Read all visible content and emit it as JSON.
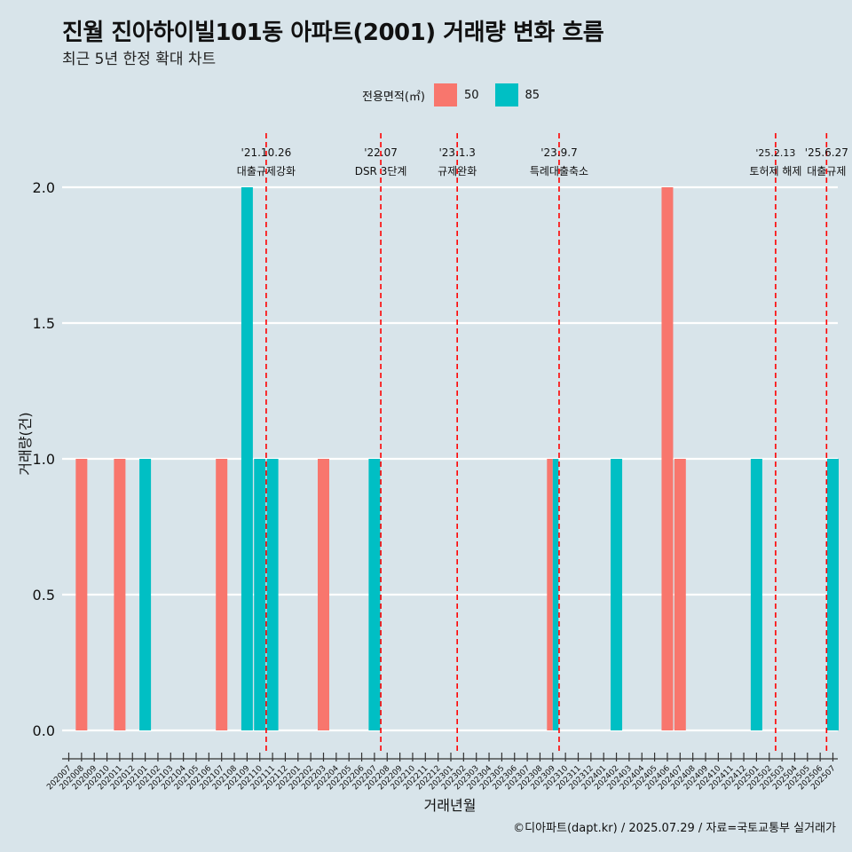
{
  "header": {
    "title": "진월 진아하이빌101동 아파트(2001) 거래량 변화 흐름",
    "subtitle": "최근 5년 한정 확대 차트"
  },
  "legend": {
    "title": "전용면적(㎡)",
    "items": [
      {
        "label": "50",
        "color": "#f8766d"
      },
      {
        "label": "85",
        "color": "#00bfc4"
      }
    ]
  },
  "footer": {
    "credit": "©디아파트(dapt.kr) / 2025.07.29 / 자료=국토교통부 실거래가"
  },
  "chart_data": {
    "type": "bar",
    "xlabel": "거래년월",
    "ylabel": "거래량(건)",
    "ylim": [
      0,
      2
    ],
    "yticks": [
      "0.0",
      "0.5",
      "1.0",
      "1.5",
      "2.0"
    ],
    "categories": [
      "202007",
      "202008",
      "202009",
      "202010",
      "202011",
      "202012",
      "202101",
      "202102",
      "202103",
      "202104",
      "202105",
      "202106",
      "202107",
      "202108",
      "202109",
      "202110",
      "202111",
      "202112",
      "202201",
      "202202",
      "202203",
      "202204",
      "202205",
      "202206",
      "202207",
      "202208",
      "202209",
      "202210",
      "202211",
      "202212",
      "202301",
      "202302",
      "202303",
      "202304",
      "202305",
      "202306",
      "202307",
      "202308",
      "202309",
      "202310",
      "202311",
      "202312",
      "202401",
      "202402",
      "202403",
      "202404",
      "202405",
      "202406",
      "202407",
      "202408",
      "202409",
      "202410",
      "202411",
      "202412",
      "202501",
      "202502",
      "202503",
      "202504",
      "202505",
      "202506",
      "202507"
    ],
    "series": [
      {
        "name": "50",
        "color": "#f8766d",
        "values": [
          {
            "x": "202008",
            "y": 1
          },
          {
            "x": "202011",
            "y": 1
          },
          {
            "x": "202107",
            "y": 1
          },
          {
            "x": "202203",
            "y": 1
          },
          {
            "x": "202309",
            "y": 1
          },
          {
            "x": "202406",
            "y": 2
          },
          {
            "x": "202407",
            "y": 1
          }
        ]
      },
      {
        "name": "85",
        "color": "#00bfc4",
        "values": [
          {
            "x": "202101",
            "y": 1
          },
          {
            "x": "202109",
            "y": 2
          },
          {
            "x": "202110",
            "y": 1
          },
          {
            "x": "202111",
            "y": 1
          },
          {
            "x": "202207",
            "y": 1
          },
          {
            "x": "202309",
            "y": 1
          },
          {
            "x": "202402",
            "y": 1
          },
          {
            "x": "202501",
            "y": 1
          },
          {
            "x": "202507",
            "y": 1
          }
        ]
      }
    ],
    "annotations": [
      {
        "x": "202110",
        "date": "'21.10.26",
        "label": "대출규제강화"
      },
      {
        "x": "202207",
        "date": "'22.07",
        "label": "DSR 3단계"
      },
      {
        "x": "202301",
        "date": "'23.1.3",
        "label": "규제완화"
      },
      {
        "x": "202309",
        "date": "'23.9.7",
        "label": "특례대출축소"
      },
      {
        "x": "202502",
        "date": "'25.2.13",
        "label": "토허제 해제"
      },
      {
        "x": "202506",
        "date": "'25.6.27",
        "label": "대출규제"
      }
    ],
    "grid": true,
    "legend_position": "top"
  }
}
